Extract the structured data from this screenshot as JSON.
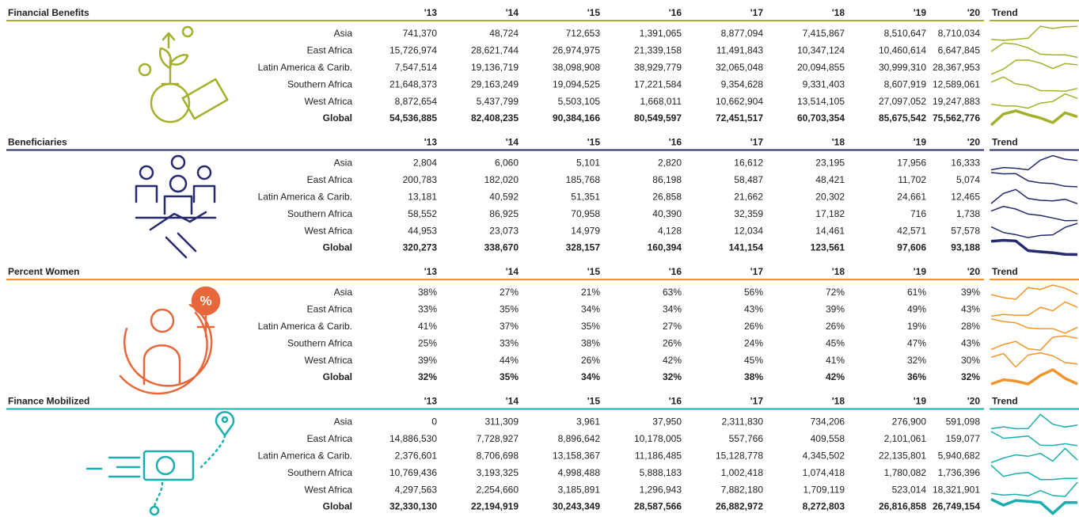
{
  "sections": [
    {
      "title": "Financial Benefits",
      "color": "#a3b12a",
      "columns": [
        "'13",
        "'14",
        "'15",
        "'16",
        "'17",
        "'18",
        "'19",
        "'20"
      ],
      "trend_label": "Trend",
      "rows": [
        {
          "label": "Asia",
          "values": [
            741370,
            48724,
            712653,
            1391065,
            8877094,
            7415867,
            8510647,
            8710034
          ],
          "value_labels": [
            "741,370",
            "48,724",
            "712,653",
            "1,391,065",
            "8,877,094",
            "7,415,867",
            "8,510,647",
            "8,710,034"
          ]
        },
        {
          "label": "East Africa",
          "values": [
            15726974,
            28621744,
            26974975,
            21339158,
            11491843,
            10347124,
            10460614,
            6647845
          ],
          "value_labels": [
            "15,726,974",
            "28,621,744",
            "26,974,975",
            "21,339,158",
            "11,491,843",
            "10,347,124",
            "10,460,614",
            "6,647,845"
          ]
        },
        {
          "label": "Latin America & Carib.",
          "values": [
            7547514,
            19136719,
            38098908,
            38929779,
            32065048,
            20094855,
            30999310,
            28367953
          ],
          "value_labels": [
            "7,547,514",
            "19,136,719",
            "38,098,908",
            "38,929,779",
            "32,065,048",
            "20,094,855",
            "30,999,310",
            "28,367,953"
          ]
        },
        {
          "label": "Southern Africa",
          "values": [
            21648373,
            29163249,
            19094525,
            17221584,
            9354628,
            9331403,
            8607919,
            12589061
          ],
          "value_labels": [
            "21,648,373",
            "29,163,249",
            "19,094,525",
            "17,221,584",
            "9,354,628",
            "9,331,403",
            "8,607,919",
            "12,589,061"
          ]
        },
        {
          "label": "West Africa",
          "values": [
            8872654,
            5437799,
            5503105,
            1668011,
            10662904,
            13514105,
            27097052,
            19247883
          ],
          "value_labels": [
            "8,872,654",
            "5,437,799",
            "5,503,105",
            "1,668,011",
            "10,662,904",
            "13,514,105",
            "27,097,052",
            "19,247,883"
          ]
        },
        {
          "label": "Global",
          "values": [
            54536885,
            82408235,
            90384166,
            80549597,
            72451517,
            60703354,
            85675542,
            75562776
          ],
          "value_labels": [
            "54,536,885",
            "82,408,235",
            "90,384,166",
            "80,549,597",
            "72,451,517",
            "60,703,354",
            "85,675,542",
            "75,562,776"
          ]
        }
      ]
    },
    {
      "title": "Beneficiaries",
      "color": "#27296d",
      "columns": [
        "'13",
        "'14",
        "'15",
        "'16",
        "'17",
        "'18",
        "'19",
        "'20"
      ],
      "trend_label": "Trend",
      "rows": [
        {
          "label": "Asia",
          "values": [
            2804,
            6060,
            5101,
            2820,
            16612,
            23195,
            17956,
            16333
          ],
          "value_labels": [
            "2,804",
            "6,060",
            "5,101",
            "2,820",
            "16,612",
            "23,195",
            "17,956",
            "16,333"
          ]
        },
        {
          "label": "East Africa",
          "values": [
            200783,
            182020,
            185768,
            86198,
            58487,
            48421,
            11702,
            5074
          ],
          "value_labels": [
            "200,783",
            "182,020",
            "185,768",
            "86,198",
            "58,487",
            "48,421",
            "11,702",
            "5,074"
          ]
        },
        {
          "label": "Latin America & Carib.",
          "values": [
            13181,
            40592,
            51351,
            26858,
            21662,
            20302,
            24661,
            12465
          ],
          "value_labels": [
            "13,181",
            "40,592",
            "51,351",
            "26,858",
            "21,662",
            "20,302",
            "24,661",
            "12,465"
          ]
        },
        {
          "label": "Southern Africa",
          "values": [
            58552,
            86925,
            70958,
            40390,
            32359,
            17182,
            716,
            1738
          ],
          "value_labels": [
            "58,552",
            "86,925",
            "70,958",
            "40,390",
            "32,359",
            "17,182",
            "716",
            "1,738"
          ]
        },
        {
          "label": "West Africa",
          "values": [
            44953,
            23073,
            14979,
            4128,
            12034,
            14461,
            42571,
            57578
          ],
          "value_labels": [
            "44,953",
            "23,073",
            "14,979",
            "4,128",
            "12,034",
            "14,461",
            "42,571",
            "57,578"
          ]
        },
        {
          "label": "Global",
          "values": [
            320273,
            338670,
            328157,
            160394,
            141154,
            123561,
            97606,
            93188
          ],
          "value_labels": [
            "320,273",
            "338,670",
            "328,157",
            "160,394",
            "141,154",
            "123,561",
            "97,606",
            "93,188"
          ]
        }
      ]
    },
    {
      "title": "Percent Women",
      "color": "#f0952a",
      "columns": [
        "'13",
        "'14",
        "'15",
        "'16",
        "'17",
        "'18",
        "'19",
        "'20"
      ],
      "trend_label": "Trend",
      "rows": [
        {
          "label": "Asia",
          "values": [
            38,
            27,
            21,
            63,
            56,
            72,
            61,
            39
          ],
          "value_labels": [
            "38%",
            "27%",
            "21%",
            "63%",
            "56%",
            "72%",
            "61%",
            "39%"
          ]
        },
        {
          "label": "East Africa",
          "values": [
            33,
            35,
            34,
            34,
            43,
            39,
            49,
            43
          ],
          "value_labels": [
            "33%",
            "35%",
            "34%",
            "34%",
            "43%",
            "39%",
            "49%",
            "43%"
          ]
        },
        {
          "label": "Latin America & Carib.",
          "values": [
            41,
            37,
            35,
            27,
            26,
            26,
            19,
            28
          ],
          "value_labels": [
            "41%",
            "37%",
            "35%",
            "27%",
            "26%",
            "26%",
            "19%",
            "28%"
          ]
        },
        {
          "label": "Southern Africa",
          "values": [
            25,
            33,
            38,
            26,
            24,
            45,
            47,
            43
          ],
          "value_labels": [
            "25%",
            "33%",
            "38%",
            "26%",
            "24%",
            "45%",
            "47%",
            "43%"
          ]
        },
        {
          "label": "West Africa",
          "values": [
            39,
            44,
            26,
            42,
            45,
            41,
            32,
            30
          ],
          "value_labels": [
            "39%",
            "44%",
            "26%",
            "42%",
            "45%",
            "41%",
            "32%",
            "30%"
          ]
        },
        {
          "label": "Global",
          "values": [
            32,
            35,
            34,
            32,
            38,
            42,
            36,
            32
          ],
          "value_labels": [
            "32%",
            "35%",
            "34%",
            "32%",
            "38%",
            "42%",
            "36%",
            "32%"
          ]
        }
      ]
    },
    {
      "title": "Finance Mobilized",
      "color": "#1aaeae",
      "columns": [
        "'13",
        "'14",
        "'15",
        "'16",
        "'17",
        "'18",
        "'19",
        "'20"
      ],
      "trend_label": "Trend",
      "rows": [
        {
          "label": "Asia",
          "values": [
            0,
            311309,
            3961,
            37950,
            2311830,
            734206,
            276900,
            591098
          ],
          "value_labels": [
            "0",
            "311,309",
            "3,961",
            "37,950",
            "2,311,830",
            "734,206",
            "276,900",
            "591,098"
          ]
        },
        {
          "label": "East Africa",
          "values": [
            14886530,
            7728927,
            8896642,
            10178005,
            557766,
            409558,
            2101061,
            159077
          ],
          "value_labels": [
            "14,886,530",
            "7,728,927",
            "8,896,642",
            "10,178,005",
            "557,766",
            "409,558",
            "2,101,061",
            "159,077"
          ]
        },
        {
          "label": "Latin America & Carib.",
          "values": [
            2376601,
            8706698,
            13158367,
            11186485,
            15128778,
            4345502,
            22135801,
            5940682
          ],
          "value_labels": [
            "2,376,601",
            "8,706,698",
            "13,158,367",
            "11,186,485",
            "15,128,778",
            "4,345,502",
            "22,135,801",
            "5,940,682"
          ]
        },
        {
          "label": "Southern Africa",
          "values": [
            10769436,
            3193325,
            4998488,
            5888183,
            1002418,
            1074418,
            1780082,
            1736396
          ],
          "value_labels": [
            "10,769,436",
            "3,193,325",
            "4,998,488",
            "5,888,183",
            "1,002,418",
            "1,074,418",
            "1,780,082",
            "1,736,396"
          ]
        },
        {
          "label": "West Africa",
          "values": [
            4297563,
            2254660,
            3185891,
            1296943,
            7882180,
            1709119,
            523014,
            18321901
          ],
          "value_labels": [
            "4,297,563",
            "2,254,660",
            "3,185,891",
            "1,296,943",
            "7,882,180",
            "1,709,119",
            "523,014",
            "18,321,901"
          ]
        },
        {
          "label": "Global",
          "values": [
            32330130,
            22194919,
            30243349,
            28587566,
            26882972,
            8272803,
            26816858,
            26749154
          ],
          "value_labels": [
            "32,330,130",
            "22,194,919",
            "30,243,349",
            "28,587,566",
            "26,882,972",
            "8,272,803",
            "26,816,858",
            "26,749,154"
          ]
        }
      ]
    }
  ]
}
